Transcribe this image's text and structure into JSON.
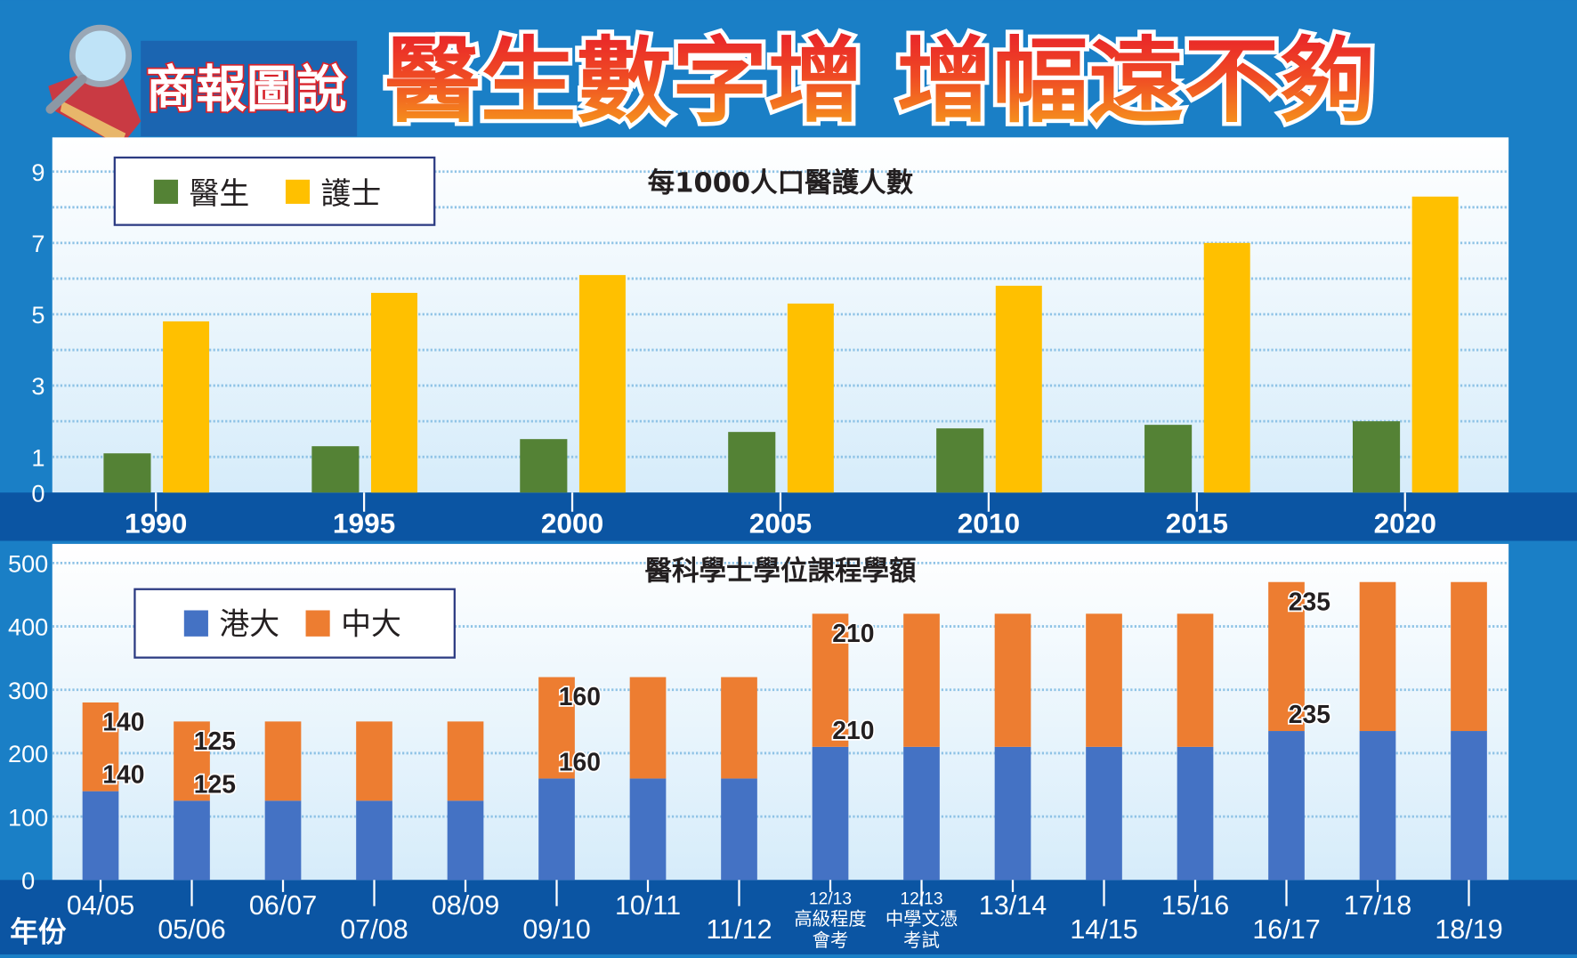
{
  "header": {
    "logo_text": "商報圖說",
    "title": "醫生數字增 增幅遠不夠"
  },
  "colors": {
    "background": "#1a7fc6",
    "band": "#0b55a3",
    "doctors": "#548235",
    "nurses": "#ffc000",
    "hku": "#4472c4",
    "cuhk": "#ed7d31"
  },
  "chart_data": [
    {
      "type": "bar",
      "title": "每1000人口醫護人數",
      "categories": [
        "1990",
        "1995",
        "2000",
        "2005",
        "2010",
        "2015",
        "2020"
      ],
      "yticks": [
        0,
        1,
        3,
        5,
        7,
        9
      ],
      "ylim": [
        0,
        9
      ],
      "grid": true,
      "legend": "top-left",
      "series": [
        {
          "name": "醫生",
          "color": "#548235",
          "values": [
            1.1,
            1.3,
            1.5,
            1.7,
            1.8,
            1.9,
            2.0
          ]
        },
        {
          "name": "護士",
          "color": "#ffc000",
          "values": [
            4.8,
            5.6,
            6.1,
            5.3,
            5.8,
            7.0,
            8.3
          ]
        }
      ]
    },
    {
      "type": "bar",
      "stacked": true,
      "title": "醫科學士學位課程學額",
      "xlabel": "年份",
      "categories": [
        "04/05",
        "05/06",
        "06/07",
        "07/08",
        "08/09",
        "09/10",
        "10/11",
        "11/12",
        "12/13 高級程度會考",
        "12/13 中學文憑考試",
        "13/14",
        "14/15",
        "15/16",
        "16/17",
        "17/18",
        "18/19"
      ],
      "category_lines": [
        [
          "04/05"
        ],
        [
          "05/06"
        ],
        [
          "06/07"
        ],
        [
          "07/08"
        ],
        [
          "08/09"
        ],
        [
          "09/10"
        ],
        [
          "10/11"
        ],
        [
          "11/12"
        ],
        [
          "12/13",
          "高級程度",
          "會考"
        ],
        [
          "12/13",
          "中學文憑",
          "考試"
        ],
        [
          "13/14"
        ],
        [
          "14/15"
        ],
        [
          "15/16"
        ],
        [
          "16/17"
        ],
        [
          "17/18"
        ],
        [
          "18/19"
        ]
      ],
      "yticks": [
        0,
        100,
        200,
        300,
        400,
        500
      ],
      "ylim": [
        0,
        500
      ],
      "grid": true,
      "legend": "top-left",
      "series": [
        {
          "name": "港大",
          "color": "#4472c4",
          "values": [
            140,
            125,
            125,
            125,
            125,
            160,
            160,
            160,
            210,
            210,
            210,
            210,
            210,
            235,
            235,
            235
          ]
        },
        {
          "name": "中大",
          "color": "#ed7d31",
          "values": [
            140,
            125,
            125,
            125,
            125,
            160,
            160,
            160,
            210,
            210,
            210,
            210,
            210,
            235,
            235,
            235
          ]
        }
      ],
      "labeled_indices": [
        0,
        1,
        5,
        8,
        13
      ]
    }
  ]
}
